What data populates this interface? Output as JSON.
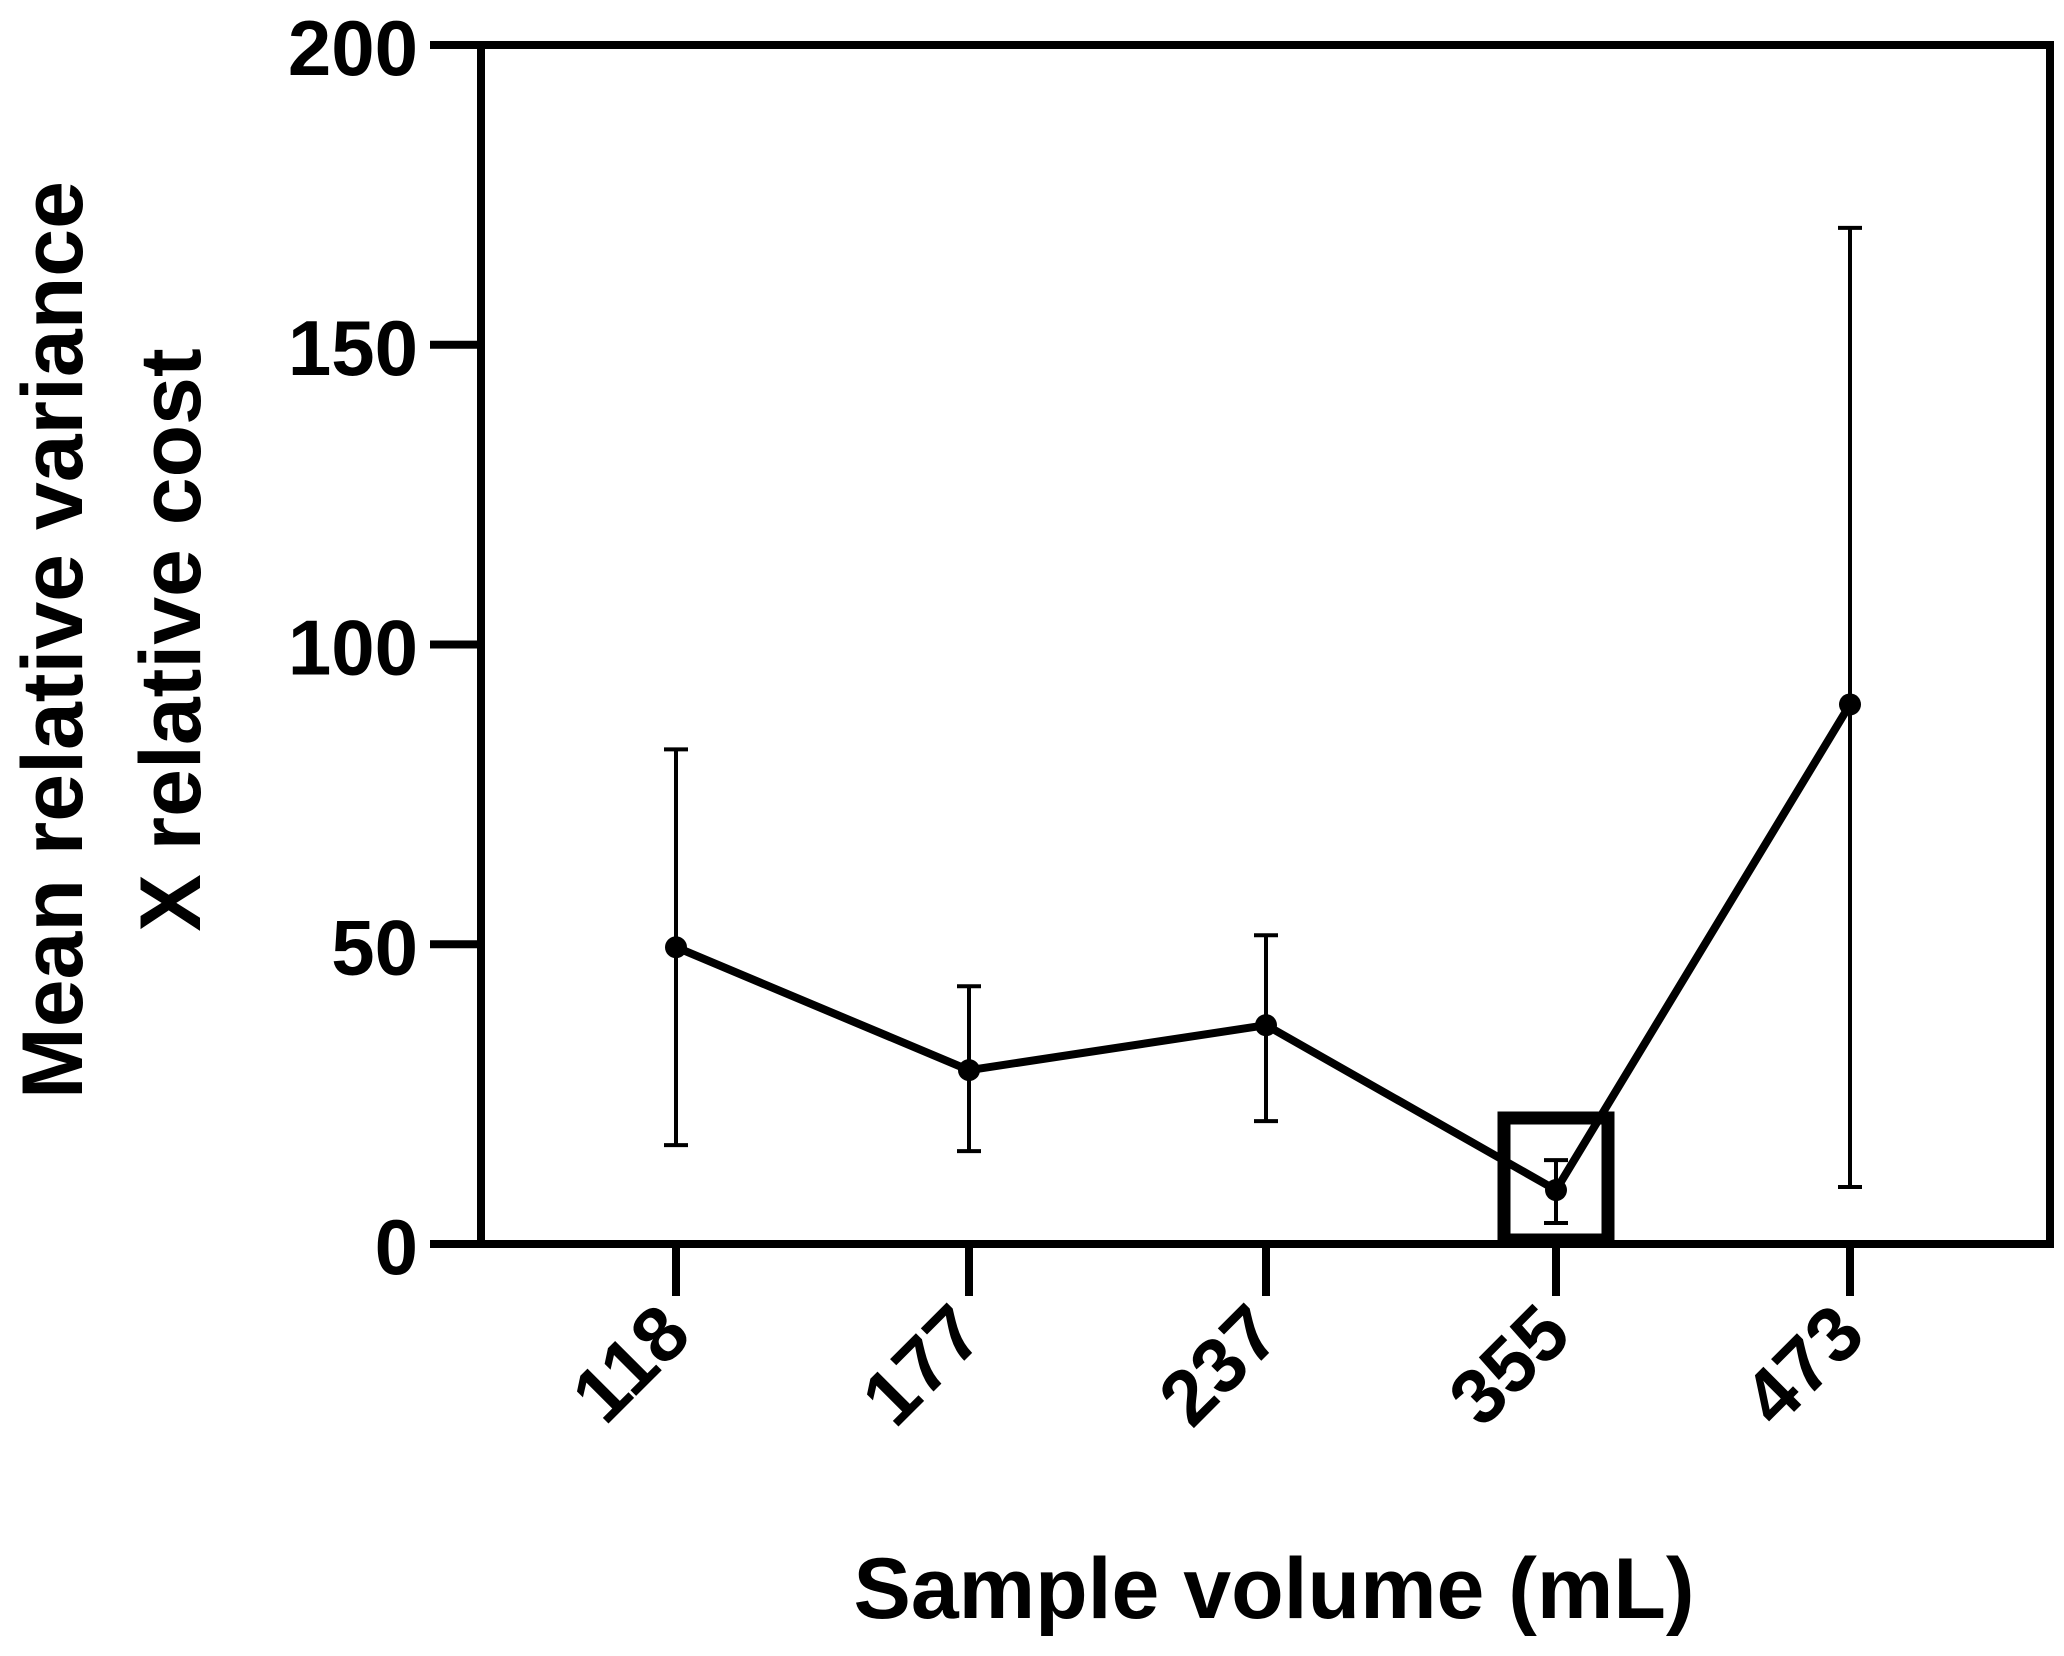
{
  "chart_data": {
    "type": "line",
    "xlabel": "Sample volume (mL)",
    "ylabel_lines": [
      "Mean relative variance",
      "X relative cost"
    ],
    "categories": [
      "118",
      "177",
      "237",
      "355",
      "473"
    ],
    "series": [
      {
        "values": [
          49.5,
          29,
          36.5,
          9,
          90
        ],
        "error_low": [
          16.5,
          15.5,
          20.5,
          3.5,
          9.5
        ],
        "error_high": [
          82.5,
          43,
          51.5,
          14,
          169.5
        ]
      }
    ],
    "ylim": [
      0,
      200
    ],
    "yticks": [
      0,
      50,
      100,
      150,
      200
    ],
    "highlight_category": "355",
    "grid": false,
    "colors": {
      "line": "#000000",
      "background": "#ffffff"
    }
  }
}
